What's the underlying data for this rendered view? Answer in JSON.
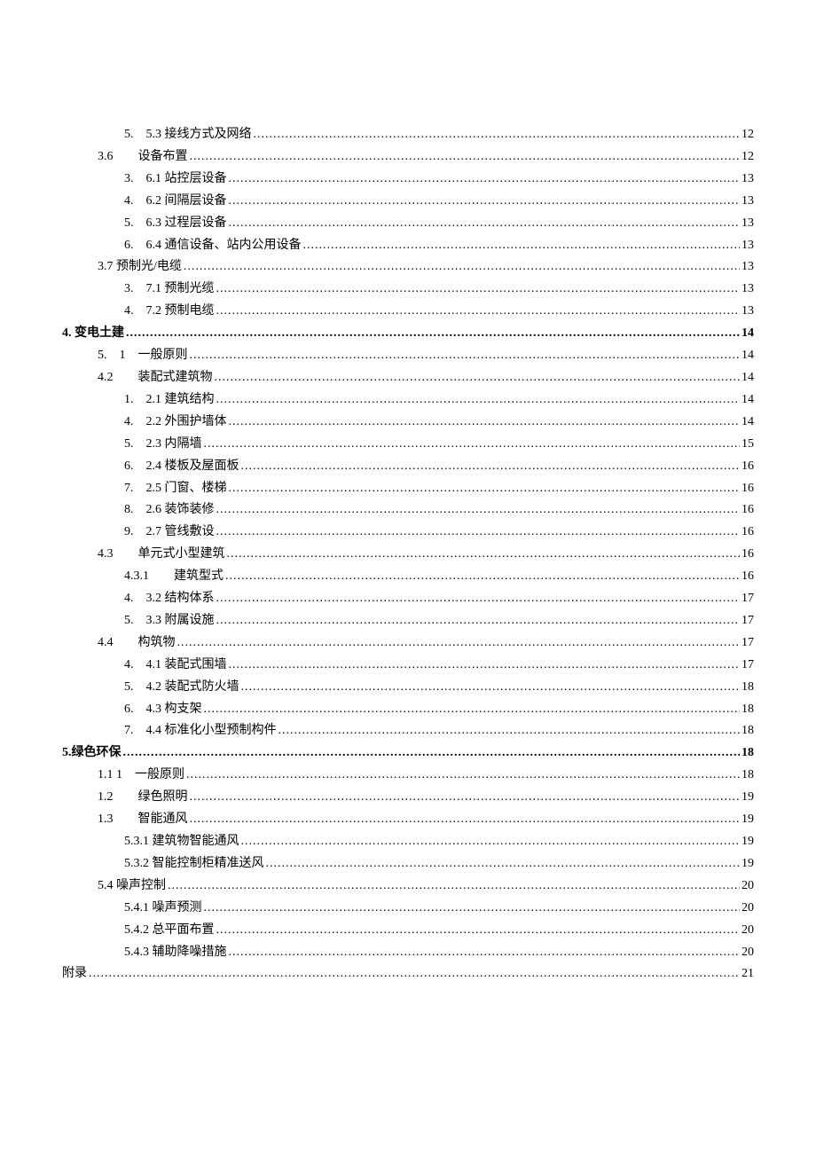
{
  "toc": [
    {
      "indent": 2,
      "bold": false,
      "label": "5.　5.3 接线方式及网络",
      "page": "12"
    },
    {
      "indent": 1,
      "bold": false,
      "label": "3.6　　设备布置",
      "page": "12"
    },
    {
      "indent": 2,
      "bold": false,
      "label": "3.　6.1 站控层设备",
      "page": "13"
    },
    {
      "indent": 2,
      "bold": false,
      "label": "4.　6.2 间隔层设备",
      "page": "13"
    },
    {
      "indent": 2,
      "bold": false,
      "label": "5.　6.3 过程层设备",
      "page": "13"
    },
    {
      "indent": 2,
      "bold": false,
      "label": "6.　6.4 通信设备、站内公用设备",
      "page": "13"
    },
    {
      "indent": 1,
      "bold": false,
      "label": "3.7 预制光/电缆",
      "page": "13"
    },
    {
      "indent": 2,
      "bold": false,
      "label": "3.　7.1 预制光缆",
      "page": "13"
    },
    {
      "indent": 2,
      "bold": false,
      "label": "4.　7.2 预制电缆",
      "page": "13"
    },
    {
      "indent": 0,
      "bold": true,
      "label": "4. 变电土建",
      "page": "14"
    },
    {
      "indent": 1,
      "bold": false,
      "label": "5.　1　一般原则",
      "page": "14"
    },
    {
      "indent": 1,
      "bold": false,
      "label": "4.2　　装配式建筑物",
      "page": "14"
    },
    {
      "indent": 2,
      "bold": false,
      "label": "1.　2.1 建筑结构",
      "page": "14"
    },
    {
      "indent": 2,
      "bold": false,
      "label": "4.　2.2 外围护墙体",
      "page": "14"
    },
    {
      "indent": 2,
      "bold": false,
      "label": "5.　2.3 内隔墙",
      "page": "15"
    },
    {
      "indent": 2,
      "bold": false,
      "label": "6.　2.4 楼板及屋面板",
      "page": "16"
    },
    {
      "indent": 2,
      "bold": false,
      "label": "7.　2.5 门窗、楼梯",
      "page": "16"
    },
    {
      "indent": 2,
      "bold": false,
      "label": "8.　2.6 装饰装修",
      "page": "16"
    },
    {
      "indent": 2,
      "bold": false,
      "label": "9.　2.7 管线敷设",
      "page": "16"
    },
    {
      "indent": 1,
      "bold": false,
      "label": "4.3　　单元式小型建筑",
      "page": "16"
    },
    {
      "indent": 2,
      "bold": false,
      "label": "4.3.1　　建筑型式",
      "page": "16"
    },
    {
      "indent": 2,
      "bold": false,
      "label": "4.　3.2 结构体系",
      "page": "17"
    },
    {
      "indent": 2,
      "bold": false,
      "label": "5.　3.3 附属设施",
      "page": "17"
    },
    {
      "indent": 1,
      "bold": false,
      "label": "4.4　　构筑物",
      "page": "17"
    },
    {
      "indent": 2,
      "bold": false,
      "label": "4.　4.1 装配式围墙",
      "page": "17"
    },
    {
      "indent": 2,
      "bold": false,
      "label": "5.　4.2 装配式防火墙",
      "page": "18"
    },
    {
      "indent": 2,
      "bold": false,
      "label": "6.　4.3 构支架",
      "page": "18"
    },
    {
      "indent": 2,
      "bold": false,
      "label": "7.　4.4 标准化小型预制构件",
      "page": "18"
    },
    {
      "indent": 0,
      "bold": true,
      "label": "5.绿色环保",
      "page": "18"
    },
    {
      "indent": 1,
      "bold": false,
      "label": "1.1 1　一般原则",
      "page": "18"
    },
    {
      "indent": 1,
      "bold": false,
      "label": "1.2　　绿色照明",
      "page": "19"
    },
    {
      "indent": 1,
      "bold": false,
      "label": "1.3　　智能通风",
      "page": "19"
    },
    {
      "indent": 2,
      "bold": false,
      "label": "5.3.1 建筑物智能通风",
      "page": "19"
    },
    {
      "indent": 2,
      "bold": false,
      "label": "5.3.2 智能控制柜精准送风",
      "page": "19"
    },
    {
      "indent": 1,
      "bold": false,
      "label": "5.4 噪声控制",
      "page": "20"
    },
    {
      "indent": 2,
      "bold": false,
      "label": "5.4.1 噪声预测",
      "page": "20"
    },
    {
      "indent": 2,
      "bold": false,
      "label": "5.4.2 总平面布置",
      "page": "20"
    },
    {
      "indent": 2,
      "bold": false,
      "label": "5.4.3 辅助降噪措施",
      "page": "20"
    },
    {
      "indent": 0,
      "bold": false,
      "label": "附录",
      "page": "21"
    }
  ]
}
